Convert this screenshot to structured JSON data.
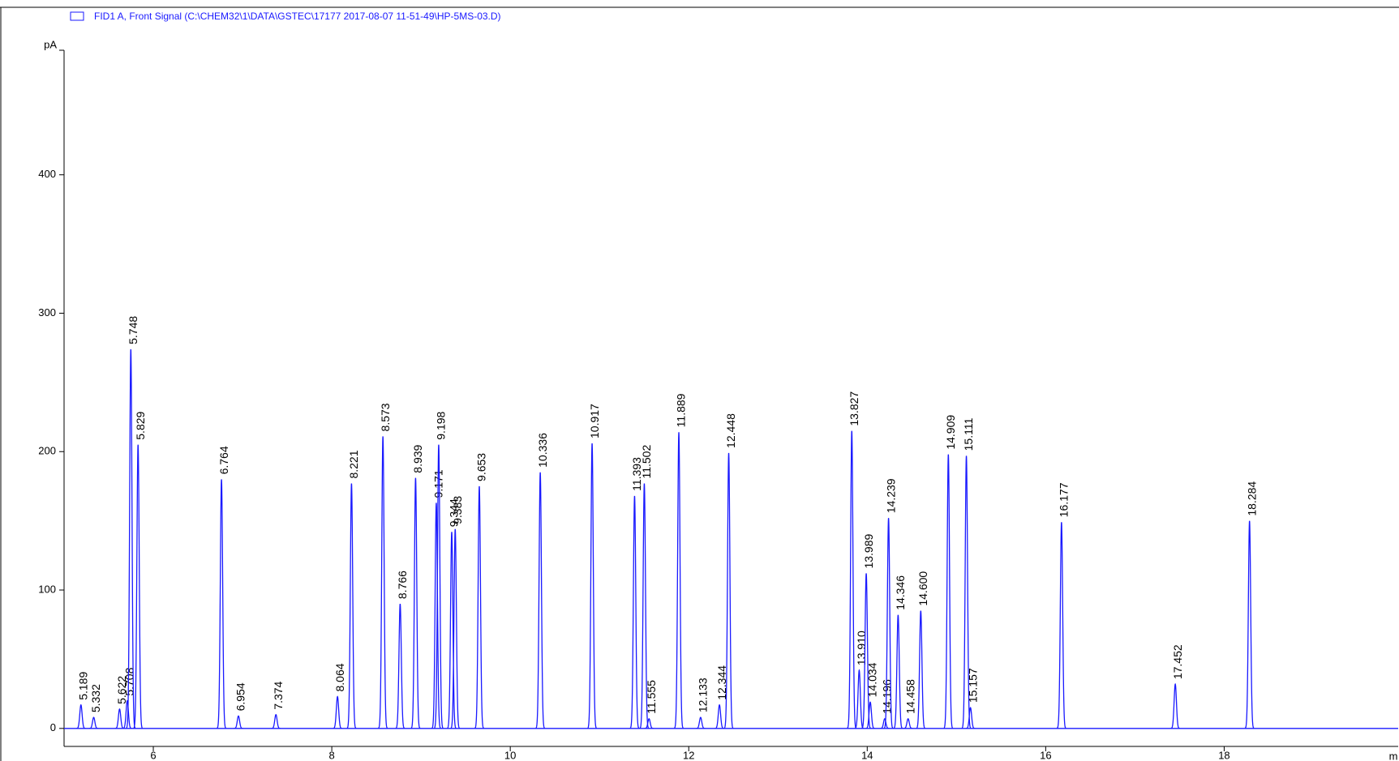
{
  "chart_data": {
    "type": "chromatogram",
    "legend": "FID1 A, Front Signal (C:\\CHEM32\\1\\DATA\\GSTEC\\17177 2017-08-07 11-51-49\\HP-5MS-03.D)",
    "y_label": "pA",
    "x_label": "m",
    "color": "#1a1aff",
    "xlim": [
      5,
      19.95
    ],
    "ylim": [
      -13,
      490
    ],
    "xticks": [
      6,
      8,
      10,
      12,
      14,
      16,
      18
    ],
    "yticks": [
      0,
      100,
      200,
      300,
      400
    ],
    "x": [
      5.189,
      5.332,
      5.622,
      5.708,
      5.748,
      5.829,
      6.764,
      6.954,
      7.374,
      8.064,
      8.221,
      8.573,
      8.766,
      8.939,
      9.171,
      9.198,
      9.344,
      9.383,
      9.653,
      10.336,
      10.917,
      11.393,
      11.502,
      11.555,
      11.889,
      12.133,
      12.344,
      12.448,
      13.827,
      13.91,
      13.989,
      14.034,
      14.196,
      14.239,
      14.346,
      14.458,
      14.6,
      14.909,
      15.111,
      15.157,
      16.177,
      17.452,
      18.284
    ],
    "peak_labels": [
      "5.189",
      "5.332",
      "5.622",
      "5.708",
      "5.748",
      "5.829",
      "6.764",
      "6.954",
      "7.374",
      "8.064",
      "8.221",
      "8.573",
      "8.766",
      "8.939",
      "9.171",
      "9.198",
      "9.344",
      "9.383",
      "9.653",
      "10.336",
      "10.917",
      "11.393",
      "11.502",
      "11.555",
      "11.889",
      "12.133",
      "12.344",
      "12.448",
      "13.827",
      "13.910",
      "13.989",
      "14.034",
      "14.196",
      "14.239",
      "14.346",
      "14.458",
      "14.600",
      "14.909",
      "15.111",
      "15.157",
      "16.177",
      "17.452",
      "18.284"
    ],
    "values": [
      17,
      8,
      14,
      20,
      274,
      205,
      180,
      9,
      10,
      23,
      177,
      211,
      90,
      181,
      163,
      205,
      142,
      144,
      175,
      185,
      206,
      168,
      177,
      7,
      214,
      8,
      17,
      199,
      215,
      42,
      112,
      19,
      7,
      152,
      82,
      7,
      85,
      198,
      197,
      15,
      149,
      32,
      150
    ]
  }
}
